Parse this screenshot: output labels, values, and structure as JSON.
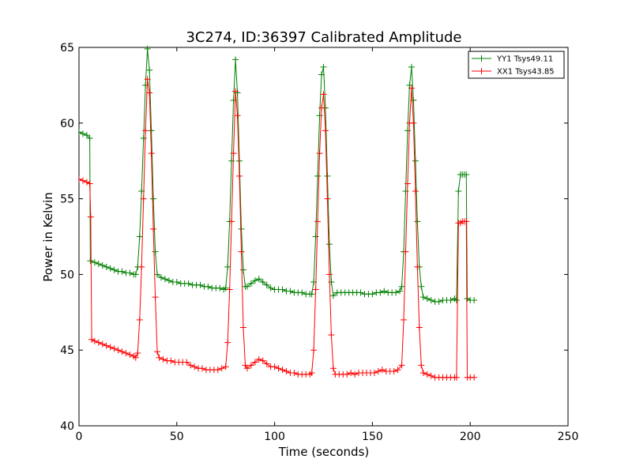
{
  "chart_data": {
    "type": "line",
    "title": "3C274, ID:36397 Calibrated Amplitude",
    "xlabel": "Time (seconds)",
    "ylabel": "Power in Kelvin",
    "xlim": [
      0,
      250
    ],
    "ylim": [
      40,
      65
    ],
    "xticks": [
      0,
      50,
      100,
      150,
      200,
      250
    ],
    "yticks": [
      40,
      45,
      50,
      55,
      60,
      65
    ],
    "grid": false,
    "legend_position": "top-right",
    "marker": "+",
    "series": [
      {
        "name": "YY1 Tsys49.11",
        "color": "#008000",
        "points": [
          [
            0,
            59.4
          ],
          [
            2,
            59.3
          ],
          [
            4,
            59.2
          ],
          [
            5.5,
            59.0
          ],
          [
            5.8,
            50.9
          ],
          [
            8,
            50.8
          ],
          [
            10,
            50.7
          ],
          [
            12,
            50.6
          ],
          [
            14,
            50.5
          ],
          [
            16,
            50.4
          ],
          [
            18,
            50.3
          ],
          [
            20,
            50.2
          ],
          [
            22,
            50.2
          ],
          [
            24,
            50.1
          ],
          [
            26,
            50.1
          ],
          [
            28,
            50.0
          ],
          [
            29,
            50.0
          ],
          [
            30,
            50.5
          ],
          [
            31,
            52.5
          ],
          [
            32,
            55.5
          ],
          [
            33,
            59.0
          ],
          [
            34,
            62.5
          ],
          [
            35,
            64.9
          ],
          [
            36,
            63.5
          ],
          [
            37,
            59.5
          ],
          [
            38,
            55.0
          ],
          [
            39,
            51.5
          ],
          [
            40,
            50.0
          ],
          [
            42,
            49.8
          ],
          [
            44,
            49.7
          ],
          [
            46,
            49.6
          ],
          [
            48,
            49.5
          ],
          [
            50,
            49.5
          ],
          [
            52,
            49.4
          ],
          [
            54,
            49.4
          ],
          [
            56,
            49.4
          ],
          [
            58,
            49.3
          ],
          [
            60,
            49.3
          ],
          [
            62,
            49.3
          ],
          [
            64,
            49.2
          ],
          [
            66,
            49.2
          ],
          [
            68,
            49.1
          ],
          [
            70,
            49.1
          ],
          [
            72,
            49.1
          ],
          [
            74,
            49.0
          ],
          [
            75,
            49.1
          ],
          [
            76,
            50.5
          ],
          [
            77,
            53.5
          ],
          [
            78,
            57.5
          ],
          [
            79,
            61.5
          ],
          [
            80,
            64.2
          ],
          [
            81,
            62.0
          ],
          [
            82,
            57.5
          ],
          [
            83,
            53.0
          ],
          [
            84,
            50.3
          ],
          [
            85,
            49.2
          ],
          [
            86,
            49.2
          ],
          [
            88,
            49.4
          ],
          [
            90,
            49.6
          ],
          [
            92,
            49.7
          ],
          [
            94,
            49.5
          ],
          [
            96,
            49.3
          ],
          [
            98,
            49.1
          ],
          [
            100,
            49.0
          ],
          [
            102,
            49.0
          ],
          [
            104,
            49.0
          ],
          [
            106,
            48.9
          ],
          [
            108,
            48.9
          ],
          [
            110,
            48.8
          ],
          [
            112,
            48.8
          ],
          [
            114,
            48.8
          ],
          [
            116,
            48.7
          ],
          [
            118,
            48.7
          ],
          [
            119,
            48.7
          ],
          [
            120,
            49.5
          ],
          [
            121,
            52.5
          ],
          [
            122,
            56.5
          ],
          [
            123,
            60.5
          ],
          [
            124,
            63.2
          ],
          [
            125,
            63.7
          ],
          [
            126,
            61.0
          ],
          [
            127,
            56.5
          ],
          [
            128,
            52.0
          ],
          [
            129,
            49.5
          ],
          [
            130,
            48.6
          ],
          [
            132,
            48.8
          ],
          [
            134,
            48.8
          ],
          [
            136,
            48.8
          ],
          [
            138,
            48.8
          ],
          [
            140,
            48.8
          ],
          [
            142,
            48.8
          ],
          [
            144,
            48.8
          ],
          [
            146,
            48.7
          ],
          [
            148,
            48.7
          ],
          [
            150,
            48.7
          ],
          [
            152,
            48.8
          ],
          [
            154,
            48.8
          ],
          [
            156,
            48.9
          ],
          [
            158,
            48.8
          ],
          [
            160,
            48.8
          ],
          [
            162,
            48.8
          ],
          [
            164,
            48.9
          ],
          [
            165,
            49.2
          ],
          [
            166,
            51.5
          ],
          [
            167,
            55.5
          ],
          [
            168,
            59.5
          ],
          [
            169,
            62.5
          ],
          [
            170,
            63.7
          ],
          [
            171,
            61.5
          ],
          [
            172,
            57.5
          ],
          [
            173,
            53.5
          ],
          [
            174,
            50.5
          ],
          [
            175,
            49.2
          ],
          [
            176,
            48.5
          ],
          [
            178,
            48.4
          ],
          [
            180,
            48.3
          ],
          [
            182,
            48.2
          ],
          [
            184,
            48.2
          ],
          [
            186,
            48.3
          ],
          [
            188,
            48.3
          ],
          [
            190,
            48.3
          ],
          [
            192,
            48.4
          ],
          [
            193,
            48.3
          ],
          [
            194,
            55.5
          ],
          [
            195,
            56.6
          ],
          [
            196,
            56.6
          ],
          [
            197,
            56.6
          ],
          [
            198,
            56.6
          ],
          [
            198.5,
            48.4
          ],
          [
            200,
            48.3
          ],
          [
            202,
            48.3
          ]
        ]
      },
      {
        "name": "XX1 Tsys43.85",
        "color": "#ff0000",
        "points": [
          [
            0,
            56.3
          ],
          [
            2,
            56.2
          ],
          [
            4,
            56.1
          ],
          [
            5.5,
            56.0
          ],
          [
            6,
            53.8
          ],
          [
            6.5,
            45.7
          ],
          [
            8,
            45.6
          ],
          [
            10,
            45.5
          ],
          [
            12,
            45.4
          ],
          [
            14,
            45.3
          ],
          [
            16,
            45.2
          ],
          [
            18,
            45.1
          ],
          [
            20,
            45.0
          ],
          [
            22,
            44.9
          ],
          [
            24,
            44.8
          ],
          [
            26,
            44.7
          ],
          [
            28,
            44.6
          ],
          [
            29,
            44.5
          ],
          [
            30,
            44.8
          ],
          [
            31,
            47.0
          ],
          [
            32,
            50.5
          ],
          [
            33,
            55.0
          ],
          [
            34,
            59.5
          ],
          [
            35,
            62.9
          ],
          [
            36,
            62.0
          ],
          [
            37,
            58.0
          ],
          [
            38,
            53.0
          ],
          [
            39,
            48.5
          ],
          [
            40,
            44.9
          ],
          [
            41,
            44.5
          ],
          [
            43,
            44.4
          ],
          [
            45,
            44.3
          ],
          [
            47,
            44.3
          ],
          [
            49,
            44.2
          ],
          [
            51,
            44.2
          ],
          [
            53,
            44.2
          ],
          [
            55,
            44.2
          ],
          [
            57,
            44.0
          ],
          [
            59,
            43.9
          ],
          [
            61,
            43.8
          ],
          [
            63,
            43.8
          ],
          [
            65,
            43.7
          ],
          [
            67,
            43.7
          ],
          [
            69,
            43.7
          ],
          [
            71,
            43.7
          ],
          [
            73,
            43.8
          ],
          [
            75,
            43.9
          ],
          [
            76,
            45.5
          ],
          [
            77,
            49.0
          ],
          [
            78,
            53.5
          ],
          [
            79,
            58.0
          ],
          [
            80,
            62.1
          ],
          [
            81,
            60.5
          ],
          [
            82,
            56.5
          ],
          [
            83,
            51.5
          ],
          [
            84,
            46.5
          ],
          [
            85,
            44.0
          ],
          [
            86,
            43.8
          ],
          [
            88,
            44.0
          ],
          [
            90,
            44.2
          ],
          [
            92,
            44.4
          ],
          [
            94,
            44.3
          ],
          [
            96,
            44.1
          ],
          [
            98,
            43.9
          ],
          [
            100,
            43.9
          ],
          [
            102,
            43.8
          ],
          [
            104,
            43.7
          ],
          [
            106,
            43.6
          ],
          [
            108,
            43.5
          ],
          [
            110,
            43.5
          ],
          [
            112,
            43.4
          ],
          [
            114,
            43.4
          ],
          [
            116,
            43.4
          ],
          [
            118,
            43.4
          ],
          [
            119,
            43.5
          ],
          [
            120,
            45.0
          ],
          [
            121,
            49.0
          ],
          [
            122,
            53.5
          ],
          [
            123,
            58.0
          ],
          [
            124,
            61.0
          ],
          [
            125,
            61.9
          ],
          [
            126,
            59.5
          ],
          [
            127,
            55.0
          ],
          [
            128,
            50.0
          ],
          [
            129,
            46.0
          ],
          [
            130,
            43.8
          ],
          [
            131,
            43.4
          ],
          [
            133,
            43.4
          ],
          [
            135,
            43.4
          ],
          [
            137,
            43.4
          ],
          [
            139,
            43.5
          ],
          [
            141,
            43.4
          ],
          [
            143,
            43.5
          ],
          [
            145,
            43.5
          ],
          [
            147,
            43.5
          ],
          [
            149,
            43.5
          ],
          [
            151,
            43.5
          ],
          [
            153,
            43.6
          ],
          [
            155,
            43.7
          ],
          [
            157,
            43.6
          ],
          [
            159,
            43.6
          ],
          [
            161,
            43.6
          ],
          [
            163,
            43.7
          ],
          [
            165,
            44.0
          ],
          [
            166,
            47.0
          ],
          [
            167,
            51.5
          ],
          [
            168,
            56.0
          ],
          [
            169,
            60.0
          ],
          [
            170,
            62.3
          ],
          [
            171,
            60.0
          ],
          [
            172,
            55.5
          ],
          [
            173,
            50.5
          ],
          [
            174,
            46.5
          ],
          [
            175,
            44.0
          ],
          [
            176,
            43.5
          ],
          [
            178,
            43.4
          ],
          [
            180,
            43.3
          ],
          [
            182,
            43.2
          ],
          [
            184,
            43.2
          ],
          [
            186,
            43.2
          ],
          [
            188,
            43.2
          ],
          [
            190,
            43.2
          ],
          [
            192,
            43.2
          ],
          [
            193,
            43.2
          ],
          [
            194,
            53.4
          ],
          [
            195,
            53.4
          ],
          [
            196,
            53.5
          ],
          [
            197,
            53.5
          ],
          [
            198,
            53.5
          ],
          [
            198.5,
            43.2
          ],
          [
            200,
            43.2
          ],
          [
            202,
            43.2
          ]
        ]
      }
    ]
  }
}
